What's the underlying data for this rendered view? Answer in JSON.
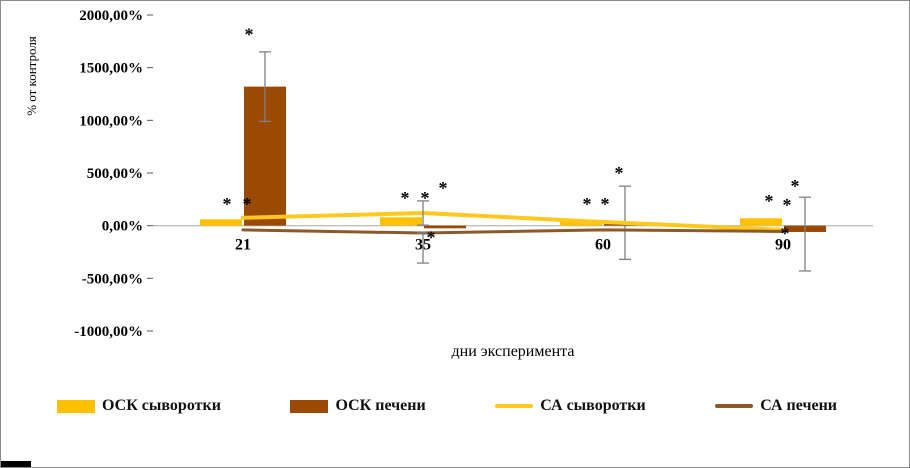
{
  "chart_data": {
    "type": "bar+line",
    "title": "",
    "xlabel": "дни эксперимента",
    "ylabel": "% от контроля",
    "categories": [
      "21",
      "35",
      "60",
      "90"
    ],
    "ylim": [
      -1000,
      2000
    ],
    "ytick_step": 500,
    "ytick_labels": [
      "2000,00%",
      "1500,00%",
      "1000,00%",
      "500,00%",
      "0,00%",
      "-500,00%",
      "-1000,00%"
    ],
    "grid": false,
    "legend_position": "bottom",
    "error_color": "#808080",
    "bar_series": [
      {
        "name": "ОСК сыворотки",
        "color": "#FFC000",
        "values": [
          60,
          80,
          40,
          70
        ],
        "errors": [
          [
            0,
            0
          ],
          [
            0,
            0
          ],
          [
            0,
            0
          ],
          [
            0,
            0
          ]
        ]
      },
      {
        "name": "ОСК печени",
        "color": "#9B4A06",
        "values": [
          1320,
          -25,
          30,
          -60
        ],
        "errors": [
          [
            330,
            330
          ],
          [
            0,
            0
          ],
          [
            350,
            345
          ],
          [
            370,
            330
          ]
        ]
      }
    ],
    "line_series": [
      {
        "name": "СА сыворотки",
        "color": "#FFC81E",
        "width": 4,
        "values": [
          75,
          120,
          35,
          -40
        ],
        "errors": [
          [
            0,
            0
          ],
          [
            115,
            115
          ],
          [
            0,
            0
          ],
          [
            0,
            0
          ]
        ]
      },
      {
        "name": "СА печени",
        "color": "#8C5A28",
        "width": 3,
        "values": [
          -40,
          -70,
          -40,
          -55
        ],
        "errors": [
          [
            0,
            0
          ],
          [
            285,
            0
          ],
          [
            0,
            0
          ],
          [
            0,
            0
          ]
        ]
      }
    ],
    "annotations": [
      {
        "cat": 0,
        "value": 150,
        "dx": -16,
        "text": "*"
      },
      {
        "cat": 0,
        "value": 150,
        "dx": 4,
        "text": "*"
      },
      {
        "cat": 0,
        "value": 1760,
        "dx": 6,
        "text": "*"
      },
      {
        "cat": 1,
        "value": 205,
        "dx": -18,
        "text": "*"
      },
      {
        "cat": 1,
        "value": 205,
        "dx": 2,
        "text": "*"
      },
      {
        "cat": 1,
        "value": 300,
        "dx": 20,
        "text": "*"
      },
      {
        "cat": 1,
        "value": -170,
        "dx": 8,
        "text": "*"
      },
      {
        "cat": 2,
        "value": 150,
        "dx": -16,
        "text": "*"
      },
      {
        "cat": 2,
        "value": 150,
        "dx": 2,
        "text": "*"
      },
      {
        "cat": 2,
        "value": 445,
        "dx": 16,
        "text": "*"
      },
      {
        "cat": 3,
        "value": 175,
        "dx": -14,
        "text": "*"
      },
      {
        "cat": 3,
        "value": 140,
        "dx": 4,
        "text": "*"
      },
      {
        "cat": 3,
        "value": 320,
        "dx": 12,
        "text": "*"
      },
      {
        "cat": 3,
        "value": -130,
        "dx": 2,
        "text": "*"
      }
    ]
  }
}
